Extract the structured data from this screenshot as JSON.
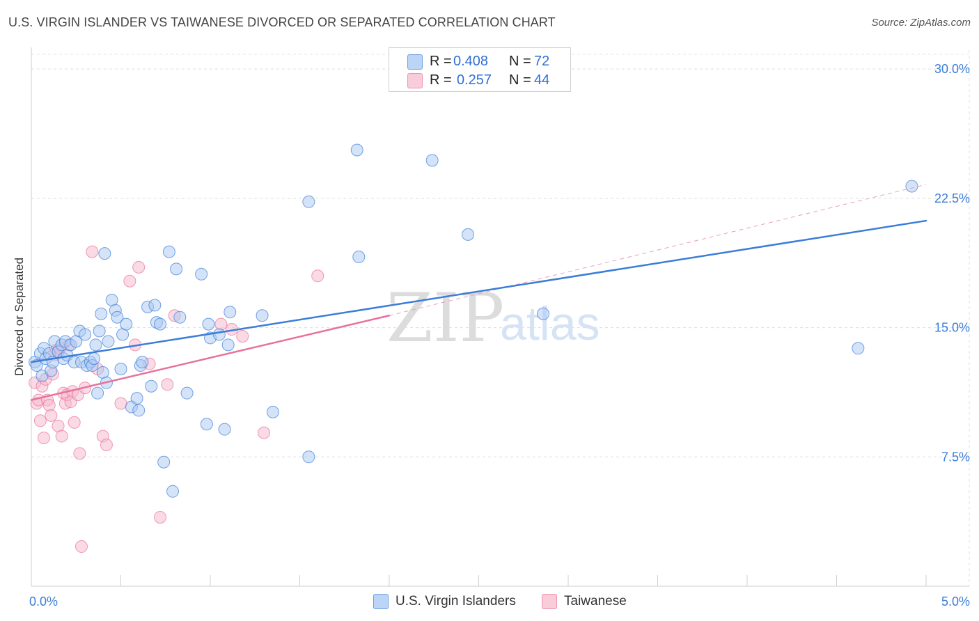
{
  "title": "U.S. VIRGIN ISLANDER VS TAIWANESE DIVORCED OR SEPARATED CORRELATION CHART",
  "source": "Source: ZipAtlas.com",
  "watermark": {
    "zip": "ZIP",
    "atlas": "atlas"
  },
  "legend": {
    "rows": [
      {
        "r_label": "R =",
        "r_value": "0.408",
        "n_label": "N =",
        "n_value": "72",
        "color": "#a9c8f2"
      },
      {
        "r_label": "R =",
        "r_value": "0.257",
        "n_label": "N =",
        "n_value": "44",
        "color": "#f6b8cb"
      }
    ]
  },
  "bottom_legend": [
    {
      "label": "U.S. Virgin Islanders",
      "color": "#a9c8f2"
    },
    {
      "label": "Taiwanese",
      "color": "#f6b8cb"
    }
  ],
  "chart_data": {
    "type": "scatter",
    "title": "U.S. VIRGIN ISLANDER VS TAIWANESE DIVORCED OR SEPARATED CORRELATION CHART",
    "xlabel": "",
    "ylabel": "Divorced or Separated",
    "xlim": [
      0,
      5
    ],
    "ylim": [
      0,
      31.5
    ],
    "x_tick_labels": [
      {
        "value": 0,
        "label": "0.0%"
      },
      {
        "value": 5,
        "label": "5.0%"
      }
    ],
    "y_tick_labels": [
      {
        "value": 7.5,
        "label": "7.5%"
      },
      {
        "value": 15,
        "label": "15.0%"
      },
      {
        "value": 22.5,
        "label": "22.5%"
      },
      {
        "value": 30,
        "label": "30.0%"
      }
    ],
    "grid": true,
    "series": [
      {
        "name": "U.S. Virgin Islanders",
        "color": "#3b7dd8",
        "fill": "#a9c8f2",
        "points": [
          [
            0.02,
            13.0
          ],
          [
            0.03,
            12.8
          ],
          [
            0.05,
            13.5
          ],
          [
            0.06,
            12.2
          ],
          [
            0.07,
            13.8
          ],
          [
            0.08,
            13.2
          ],
          [
            0.1,
            13.5
          ],
          [
            0.11,
            12.5
          ],
          [
            0.12,
            13.0
          ],
          [
            0.13,
            14.2
          ],
          [
            0.15,
            13.6
          ],
          [
            0.17,
            14.0
          ],
          [
            0.18,
            13.2
          ],
          [
            0.19,
            14.2
          ],
          [
            0.2,
            13.4
          ],
          [
            0.22,
            14.0
          ],
          [
            0.24,
            13.0
          ],
          [
            0.25,
            14.2
          ],
          [
            0.27,
            14.8
          ],
          [
            0.28,
            13.0
          ],
          [
            0.3,
            14.6
          ],
          [
            0.31,
            12.8
          ],
          [
            0.33,
            13.0
          ],
          [
            0.34,
            12.8
          ],
          [
            0.35,
            13.2
          ],
          [
            0.36,
            14.0
          ],
          [
            0.37,
            11.2
          ],
          [
            0.38,
            14.8
          ],
          [
            0.39,
            15.8
          ],
          [
            0.4,
            12.4
          ],
          [
            0.41,
            19.3
          ],
          [
            0.42,
            11.8
          ],
          [
            0.43,
            14.2
          ],
          [
            0.45,
            16.6
          ],
          [
            0.47,
            16.0
          ],
          [
            0.48,
            15.6
          ],
          [
            0.5,
            12.6
          ],
          [
            0.51,
            14.6
          ],
          [
            0.53,
            15.2
          ],
          [
            0.56,
            10.4
          ],
          [
            0.59,
            10.9
          ],
          [
            0.6,
            10.2
          ],
          [
            0.61,
            12.8
          ],
          [
            0.62,
            13.0
          ],
          [
            0.65,
            16.2
          ],
          [
            0.67,
            11.6
          ],
          [
            0.69,
            16.3
          ],
          [
            0.7,
            15.3
          ],
          [
            0.72,
            15.2
          ],
          [
            0.74,
            7.2
          ],
          [
            0.77,
            19.4
          ],
          [
            0.79,
            5.5
          ],
          [
            0.81,
            18.4
          ],
          [
            0.83,
            15.6
          ],
          [
            0.87,
            11.2
          ],
          [
            0.95,
            18.1
          ],
          [
            0.98,
            9.4
          ],
          [
            0.99,
            15.2
          ],
          [
            1.0,
            14.4
          ],
          [
            1.05,
            14.6
          ],
          [
            1.08,
            9.1
          ],
          [
            1.1,
            14.0
          ],
          [
            1.11,
            15.9
          ],
          [
            1.29,
            15.7
          ],
          [
            1.35,
            10.1
          ],
          [
            1.55,
            7.5
          ],
          [
            1.55,
            22.3
          ],
          [
            1.83,
            19.1
          ],
          [
            1.82,
            25.3
          ],
          [
            2.24,
            24.7
          ],
          [
            2.44,
            20.4
          ],
          [
            2.86,
            15.8
          ],
          [
            4.62,
            13.8
          ],
          [
            4.92,
            23.2
          ]
        ],
        "trend": {
          "x0": 0,
          "y0": 13.0,
          "x1": 5.0,
          "y1": 21.2
        }
      },
      {
        "name": "Taiwanese",
        "color": "#e8719a",
        "fill": "#f6b8cb",
        "points": [
          [
            0.02,
            11.8
          ],
          [
            0.03,
            10.6
          ],
          [
            0.04,
            10.8
          ],
          [
            0.05,
            9.6
          ],
          [
            0.06,
            11.6
          ],
          [
            0.07,
            8.6
          ],
          [
            0.08,
            12.0
          ],
          [
            0.09,
            10.8
          ],
          [
            0.1,
            10.5
          ],
          [
            0.11,
            9.9
          ],
          [
            0.12,
            12.3
          ],
          [
            0.13,
            13.4
          ],
          [
            0.14,
            13.7
          ],
          [
            0.15,
            9.3
          ],
          [
            0.16,
            13.8
          ],
          [
            0.17,
            8.7
          ],
          [
            0.18,
            11.2
          ],
          [
            0.19,
            10.6
          ],
          [
            0.2,
            11.1
          ],
          [
            0.21,
            14.0
          ],
          [
            0.22,
            10.7
          ],
          [
            0.23,
            11.3
          ],
          [
            0.24,
            9.5
          ],
          [
            0.26,
            11.1
          ],
          [
            0.27,
            7.7
          ],
          [
            0.28,
            2.3
          ],
          [
            0.3,
            11.5
          ],
          [
            0.34,
            19.4
          ],
          [
            0.37,
            12.6
          ],
          [
            0.4,
            8.7
          ],
          [
            0.42,
            8.2
          ],
          [
            0.5,
            10.6
          ],
          [
            0.55,
            17.7
          ],
          [
            0.58,
            14.0
          ],
          [
            0.6,
            18.5
          ],
          [
            0.72,
            4.0
          ],
          [
            0.76,
            11.7
          ],
          [
            0.8,
            15.7
          ],
          [
            1.06,
            15.2
          ],
          [
            1.12,
            14.9
          ],
          [
            1.18,
            14.5
          ],
          [
            1.3,
            8.9
          ],
          [
            1.6,
            18.0
          ],
          [
            0.66,
            12.9
          ]
        ],
        "trend": {
          "x0": 0,
          "y0": 10.8,
          "x1": 2.0,
          "y1": 15.7
        },
        "trend_extension": {
          "x0": 2.0,
          "y0": 15.7,
          "x1": 5.0,
          "y1": 23.3
        }
      }
    ]
  }
}
